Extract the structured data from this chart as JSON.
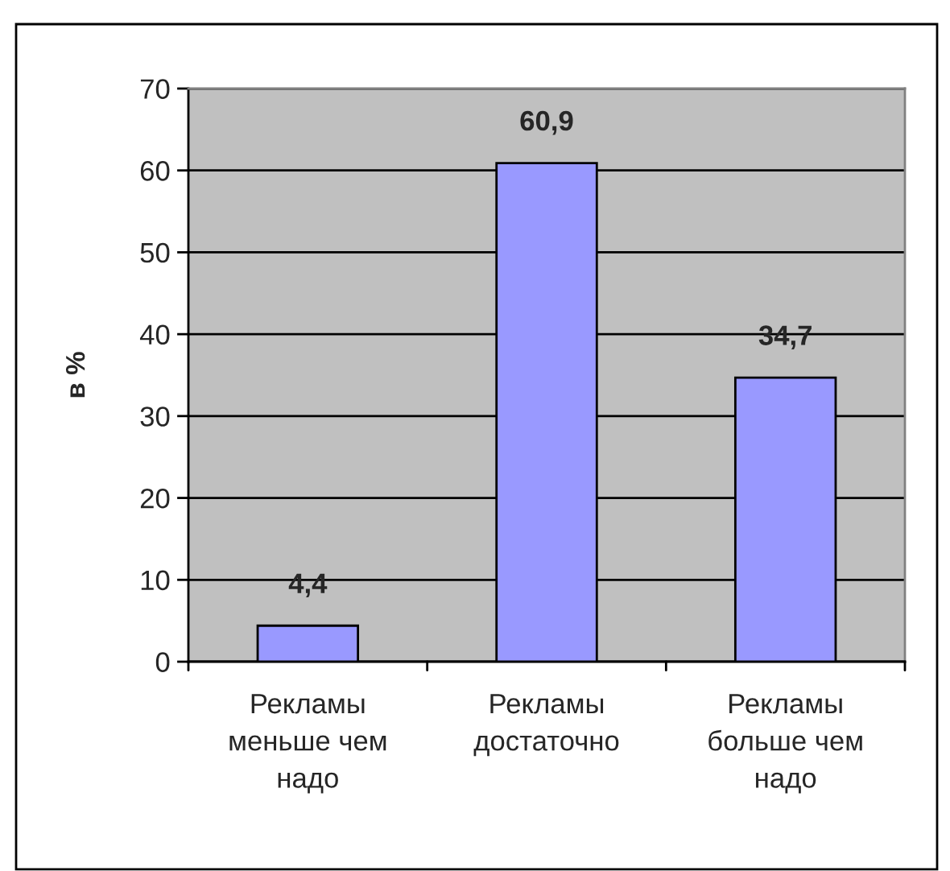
{
  "chart_data": {
    "type": "bar",
    "ylabel": "в %",
    "categories": [
      "Рекламы\nменьше чем\nнадо",
      "Рекламы\nдостаточно",
      "Рекламы\nбольше чем\nнадо"
    ],
    "values": [
      4.4,
      60.9,
      34.7
    ],
    "value_labels": [
      "4,4",
      "60,9",
      "34,7"
    ],
    "color": "#9999ff",
    "ylim": [
      0,
      70
    ],
    "yticks": [
      0,
      10,
      20,
      30,
      40,
      50,
      60,
      70
    ],
    "grid": "y",
    "legend": false
  }
}
